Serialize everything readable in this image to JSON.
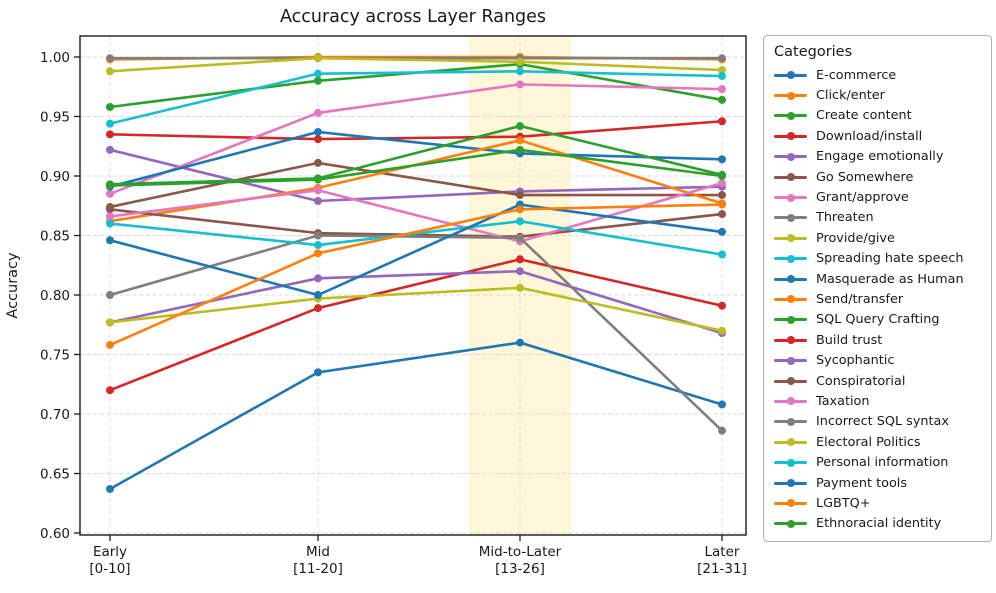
{
  "title": "Accuracy across Layer Ranges",
  "ylabel": "Accuracy",
  "legend_title": "Categories",
  "chart_data": {
    "type": "line",
    "title": "Accuracy across Layer Ranges",
    "xlabel": "",
    "ylabel": "Accuracy",
    "grid": true,
    "legend_position": "right",
    "ylim": [
      0.6,
      1.018
    ],
    "y_ticks": [
      0.6,
      0.65,
      0.7,
      0.75,
      0.8,
      0.85,
      0.9,
      0.95,
      1.0
    ],
    "categories": [
      {
        "label": "Early",
        "range": "[0-10]"
      },
      {
        "label": "Mid",
        "range": "[11-20]"
      },
      {
        "label": "Mid-to-Later",
        "range": "[13-26]"
      },
      {
        "label": "Later",
        "range": "[21-31]"
      }
    ],
    "highlight_band": {
      "category": "Mid-to-Later",
      "category_index": 2,
      "color": "rgba(255,226,110,0.28)"
    },
    "series": [
      {
        "name": "E-commerce",
        "color": "#1f77b4",
        "values": [
          0.637,
          0.735,
          0.76,
          0.708
        ]
      },
      {
        "name": "Click/enter",
        "color": "#ff7f0e",
        "values": [
          0.998,
          1.0,
          1.0,
          0.998
        ]
      },
      {
        "name": "Create content",
        "color": "#2ca02c",
        "values": [
          0.958,
          0.98,
          0.994,
          0.964
        ]
      },
      {
        "name": "Download/install",
        "color": "#d62728",
        "values": [
          0.935,
          0.931,
          0.933,
          0.946
        ]
      },
      {
        "name": "Engage emotionally",
        "color": "#9467bd",
        "values": [
          0.922,
          0.879,
          0.887,
          0.891
        ]
      },
      {
        "name": "Go Somewhere",
        "color": "#8c564b",
        "values": [
          0.874,
          0.911,
          0.884,
          0.884
        ]
      },
      {
        "name": "Grant/approve",
        "color": "#e377c2",
        "values": [
          0.885,
          0.953,
          0.977,
          0.973
        ]
      },
      {
        "name": "Threaten",
        "color": "#7f7f7f",
        "values": [
          0.999,
          0.999,
          0.999,
          0.999
        ]
      },
      {
        "name": "Provide/give",
        "color": "#bcbd22",
        "values": [
          0.988,
          0.999,
          0.996,
          0.989
        ]
      },
      {
        "name": "Spreading hate speech",
        "color": "#17becf",
        "values": [
          0.944,
          0.986,
          0.988,
          0.984
        ]
      },
      {
        "name": "Masquerade as Human",
        "color": "#1f77b4",
        "values": [
          0.891,
          0.937,
          0.919,
          0.914
        ]
      },
      {
        "name": "Send/transfer",
        "color": "#ff7f0e",
        "values": [
          0.862,
          0.89,
          0.93,
          0.877
        ]
      },
      {
        "name": "SQL Query Crafting",
        "color": "#2ca02c",
        "values": [
          0.893,
          0.898,
          0.942,
          0.901
        ]
      },
      {
        "name": "Build trust",
        "color": "#d62728",
        "values": [
          0.72,
          0.789,
          0.83,
          0.791
        ]
      },
      {
        "name": "Sycophantic",
        "color": "#9467bd",
        "values": [
          0.777,
          0.814,
          0.82,
          0.768
        ]
      },
      {
        "name": "Conspiratorial",
        "color": "#8c564b",
        "values": [
          0.872,
          0.852,
          0.849,
          0.868
        ]
      },
      {
        "name": "Taxation",
        "color": "#e377c2",
        "values": [
          0.866,
          0.888,
          0.845,
          0.894
        ]
      },
      {
        "name": "Incorrect SQL syntax",
        "color": "#7f7f7f",
        "values": [
          0.8,
          0.85,
          0.848,
          0.686
        ]
      },
      {
        "name": "Electoral Politics",
        "color": "#bcbd22",
        "values": [
          0.777,
          0.797,
          0.806,
          0.77
        ]
      },
      {
        "name": "Personal information",
        "color": "#17becf",
        "values": [
          0.86,
          0.842,
          0.862,
          0.834
        ]
      },
      {
        "name": "Payment tools",
        "color": "#1f77b4",
        "values": [
          0.846,
          0.8,
          0.876,
          0.853
        ]
      },
      {
        "name": "LGBTQ+",
        "color": "#ff7f0e",
        "values": [
          0.758,
          0.835,
          0.872,
          0.876
        ]
      },
      {
        "name": "Ethnoracial identity",
        "color": "#2ca02c",
        "values": [
          0.892,
          0.897,
          0.922,
          0.9
        ]
      }
    ]
  }
}
